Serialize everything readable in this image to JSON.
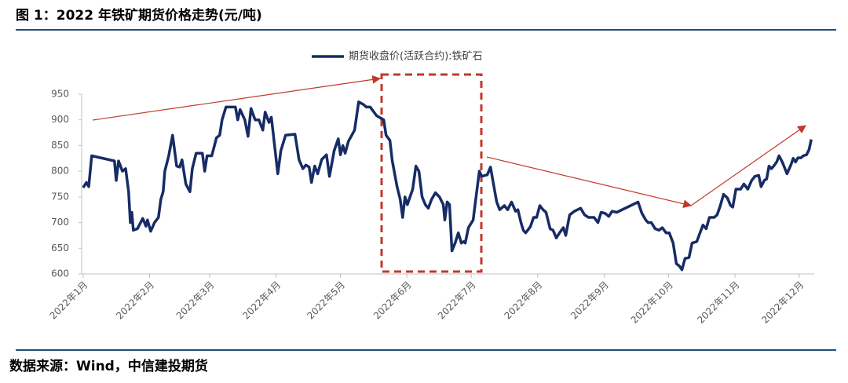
{
  "chart_data": {
    "type": "line",
    "title": "图 1：2022 年铁矿期货价格走势(元/吨)",
    "source": "数据来源：Wind，中信建投期货",
    "x": [
      1,
      2.5,
      3.6,
      5,
      15.6,
      16.4,
      17.5,
      19.3,
      20.8,
      22.2,
      23,
      23.7,
      24.4,
      26.3,
      28.8,
      30.3,
      31,
      32.5,
      34.3,
      36.1,
      37.2,
      38.3,
      39.1,
      40.9,
      42.7,
      44.6,
      46,
      47.1,
      48.9,
      50.8,
      51.9,
      53.7,
      56.6,
      57.7,
      58.8,
      61,
      63.2,
      64.7,
      65.8,
      67.6,
      72,
      73.1,
      74.2,
      76.4,
      77.9,
      79.3,
      81.2,
      83,
      84.8,
      85.9,
      87.7,
      88.8,
      91.8,
      93.2,
      95.4,
      99.8,
      101.7,
      103.5,
      104.9,
      106.4,
      107.5,
      109,
      110.4,
      112.3,
      114.5,
      115.9,
      118.1,
      120,
      121,
      122.1,
      123.2,
      124.7,
      127.6,
      129.5,
      131.7,
      133.1,
      134.9,
      137.9,
      141.2,
      142.3,
      144.1,
      145.2,
      147.4,
      148.9,
      150,
      151.1,
      152.2,
      154.7,
      156.2,
      157.6,
      159.1,
      160.6,
      162,
      163.5,
      165.3,
      167.2,
      169,
      169.7,
      170.8,
      171.9,
      173,
      174.5,
      176,
      177.4,
      178.5,
      179.2,
      180.7,
      182.9,
      184.4,
      185.8,
      186.9,
      189.5,
      191,
      192.4,
      193.9,
      195.3,
      197.5,
      199,
      200.8,
      202.7,
      203.8,
      205.2,
      206.3,
      207.4,
      209.6,
      211.1,
      212.5,
      214,
      215.5,
      216.9,
      218.8,
      220.2,
      221.7,
      223.2,
      225,
      226.1,
      227.9,
      230.1,
      233,
      234.9,
      236.7,
      239.3,
      241.1,
      242.6,
      244.4,
      246.2,
      247.7,
      249.9,
      259.8,
      261.6,
      263.4,
      264.5,
      266,
      267.8,
      269.6,
      271.1,
      272.9,
      274.4,
      276.2,
      277.7,
      279.2,
      280.3,
      281.7,
      283.6,
      285,
      287.2,
      288.7,
      290.1,
      291.6,
      293.1,
      295.3,
      296.7,
      298.2,
      299.7,
      301.5,
      303,
      304,
      305.5,
      307.7,
      309.2,
      311,
      312.8,
      314.3,
      316.1,
      317.2,
      318.7,
      319.8,
      320.9,
      322,
      323.1,
      324.5,
      325.6,
      327.1,
      329.3,
      331.1,
      332.2,
      333.3,
      334.4,
      335.8,
      336.9,
      338.4,
      339.6,
      340.6
    ],
    "series": [
      {
        "name": "期货收盘价(活跃合约):铁矿石",
        "color": "#172c66",
        "values": [
          768,
          778,
          770,
          830,
          820,
          782,
          820,
          800,
          805,
          760,
          700,
          720,
          685,
          688,
          708,
          693,
          705,
          683,
          700,
          710,
          745,
          760,
          800,
          830,
          870,
          810,
          808,
          822,
          775,
          760,
          805,
          835,
          835,
          800,
          830,
          830,
          865,
          870,
          900,
          925,
          925,
          900,
          920,
          900,
          868,
          922,
          900,
          900,
          880,
          915,
          895,
          905,
          795,
          840,
          870,
          872,
          822,
          805,
          812,
          808,
          778,
          810,
          795,
          823,
          832,
          790,
          840,
          863,
          832,
          850,
          835,
          858,
          880,
          935,
          930,
          925,
          925,
          908,
          900,
          870,
          860,
          820,
          770,
          745,
          710,
          750,
          735,
          765,
          810,
          800,
          750,
          735,
          728,
          745,
          758,
          750,
          735,
          705,
          740,
          735,
          645,
          660,
          680,
          660,
          663,
          660,
          690,
          705,
          755,
          800,
          790,
          793,
          808,
          775,
          740,
          725,
          733,
          725,
          740,
          722,
          725,
          700,
          685,
          680,
          692,
          710,
          710,
          733,
          725,
          720,
          688,
          685,
          670,
          680,
          690,
          675,
          715,
          722,
          728,
          715,
          710,
          710,
          700,
          720,
          718,
          712,
          722,
          720,
          740,
          718,
          705,
          700,
          700,
          688,
          685,
          690,
          680,
          680,
          660,
          620,
          615,
          608,
          630,
          632,
          660,
          663,
          680,
          695,
          688,
          710,
          710,
          715,
          733,
          755,
          748,
          733,
          730,
          765,
          765,
          775,
          765,
          782,
          790,
          792,
          770,
          782,
          785,
          810,
          805,
          810,
          818,
          830,
          818,
          795,
          812,
          825,
          818,
          826,
          826,
          830,
          832,
          842,
          862
        ]
      }
    ],
    "xlim": [
      0.3,
      342
    ],
    "xticks": [
      {
        "value": 1,
        "label": "2022年1月"
      },
      {
        "value": 32,
        "label": "2022年2月"
      },
      {
        "value": 60,
        "label": "2022年3月"
      },
      {
        "value": 91,
        "label": "2022年4月"
      },
      {
        "value": 121,
        "label": "2022年5月"
      },
      {
        "value": 152,
        "label": "2022年6月"
      },
      {
        "value": 182,
        "label": "2022年7月"
      },
      {
        "value": 213,
        "label": "2022年8月"
      },
      {
        "value": 244,
        "label": "2022年9月"
      },
      {
        "value": 274,
        "label": "2022年10月"
      },
      {
        "value": 305,
        "label": "2022年11月"
      },
      {
        "value": 335,
        "label": "2022年12月"
      }
    ],
    "ylim": [
      600,
      950
    ],
    "yticks": [
      600,
      650,
      700,
      750,
      800,
      850,
      900,
      950
    ],
    "legend": "top"
  }
}
